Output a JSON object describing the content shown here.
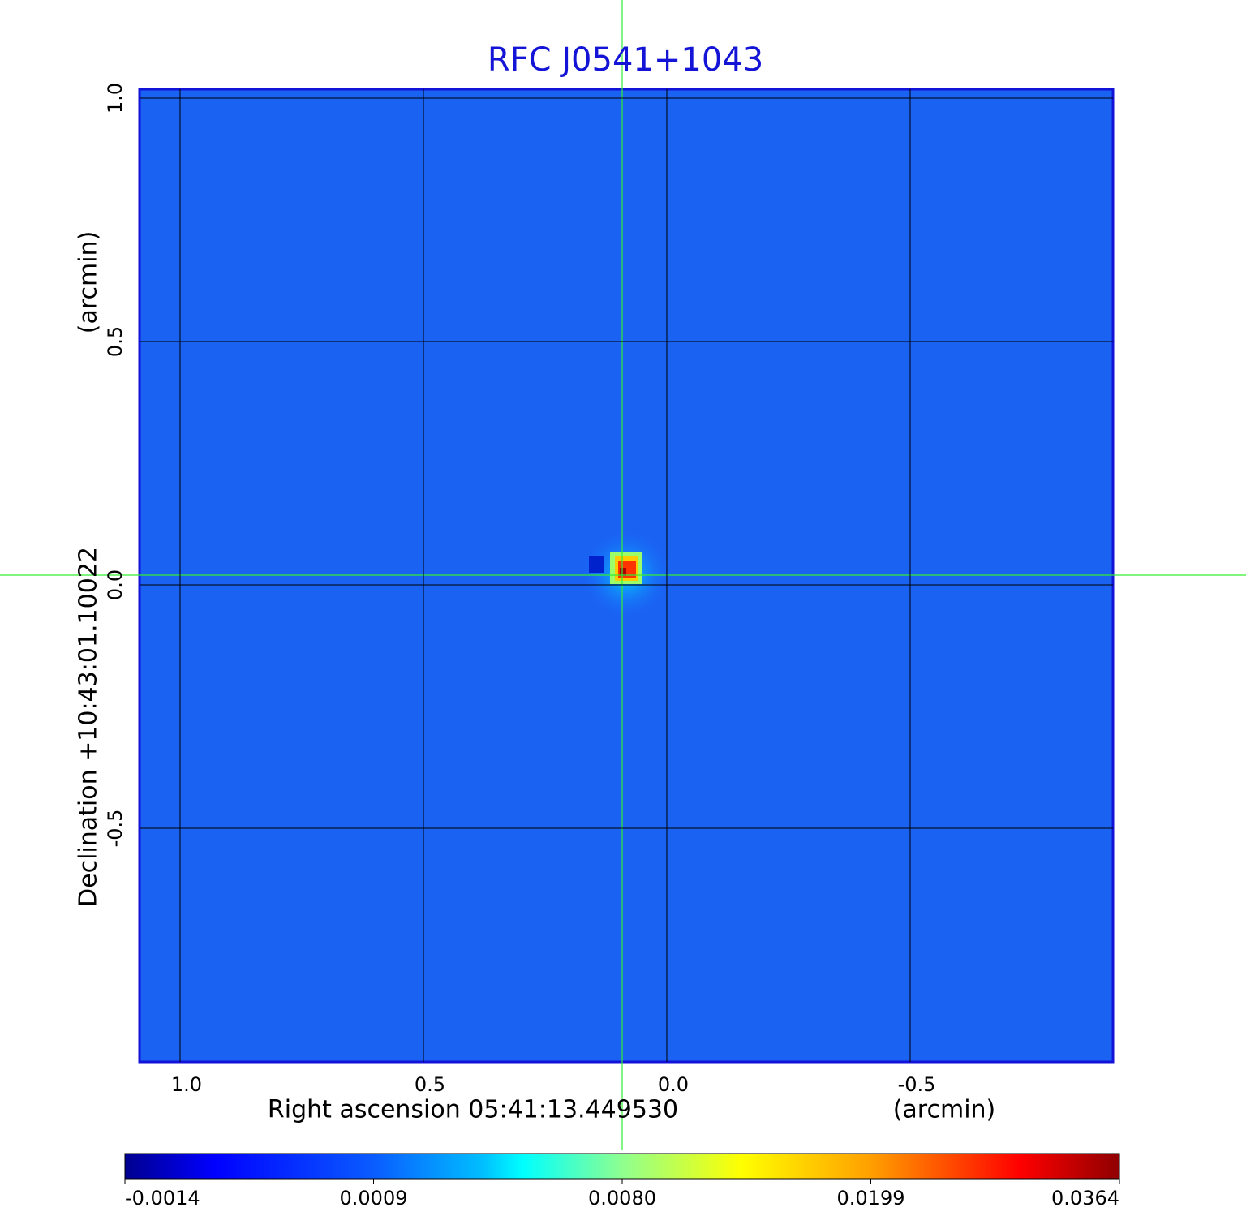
{
  "chart_data": {
    "type": "image",
    "title": "RFC J0541+1043",
    "x_label": "Right ascension  05:41:13.449530",
    "x_unit": "(arcmin)",
    "y_label": "Declination  +10:43:01.10022",
    "y_unit": "(arcmin)",
    "xlim": [
      1.0833,
      -0.9167
    ],
    "xticks": [
      {
        "value": 1,
        "label": "1.0"
      },
      0.5,
      {
        "value": 0,
        "label": "0.0"
      },
      -0.5
    ],
    "ylim": [
      -0.98,
      1.0183
    ],
    "yticks": [
      {
        "value": 1,
        "label": "1.0"
      },
      0.5,
      {
        "value": 0,
        "label": "0.0"
      },
      -0.5
    ],
    "grid": true,
    "colorbar_ticks": [
      -0.0014,
      0.0009,
      {
        "value": 0.008,
        "label": "0.0080"
      },
      0.0199,
      0.0364
    ]
  }
}
